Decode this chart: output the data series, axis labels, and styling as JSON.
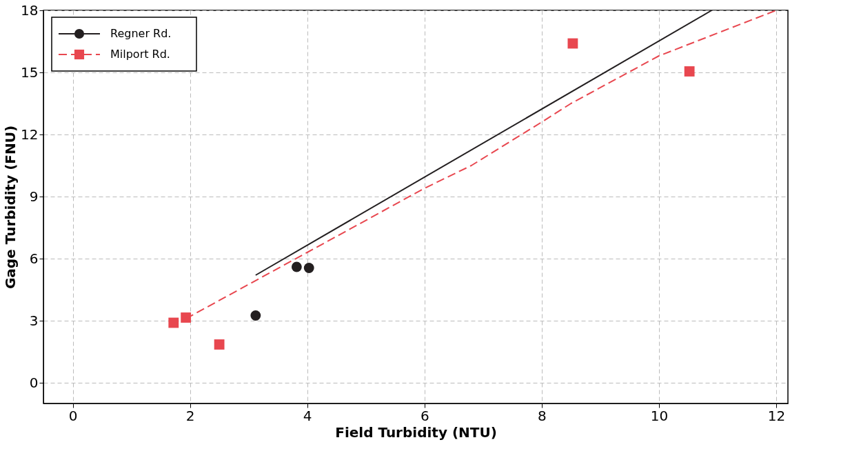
{
  "chart_data": {
    "type": "scatter",
    "xlabel": "Field Turbidity (NTU)",
    "ylabel": "Gage Turbidity (FNU)",
    "xlim": [
      -0.5,
      12.2
    ],
    "xticks": [
      0,
      2,
      4,
      6,
      8,
      10,
      12
    ],
    "ylim": [
      -1,
      18
    ],
    "yticks": [
      0,
      3,
      6,
      9,
      12,
      15,
      18
    ],
    "grid": true,
    "legend": "top left",
    "series": [
      {
        "name": "Regner Rd.",
        "color": "#231f20",
        "type": "scatter",
        "marker": "circle",
        "x": [
          3.12,
          3.82,
          4.03
        ],
        "values": [
          3.25,
          5.6,
          5.55
        ]
      },
      {
        "name": "Milport Rd.",
        "color": "#e8474f",
        "type": "scatter",
        "marker": "square",
        "x": [
          1.72,
          1.93,
          2.5,
          8.53,
          10.52
        ],
        "values": [
          2.9,
          3.15,
          1.85,
          16.4,
          15.05
        ]
      },
      {
        "color": "#231f20",
        "type": "line",
        "line_style": "solid",
        "x": [
          3.12,
          10.9
        ],
        "values": [
          5.2,
          18
        ]
      },
      {
        "color": "#e8474f",
        "type": "line",
        "line_style": "dashed",
        "x": [
          1.93,
          4,
          6,
          6.8,
          8,
          8.5,
          10,
          12
        ],
        "values": [
          3.1,
          6.3,
          9.4,
          10.5,
          12.6,
          13.5,
          15.8,
          18
        ]
      }
    ]
  }
}
